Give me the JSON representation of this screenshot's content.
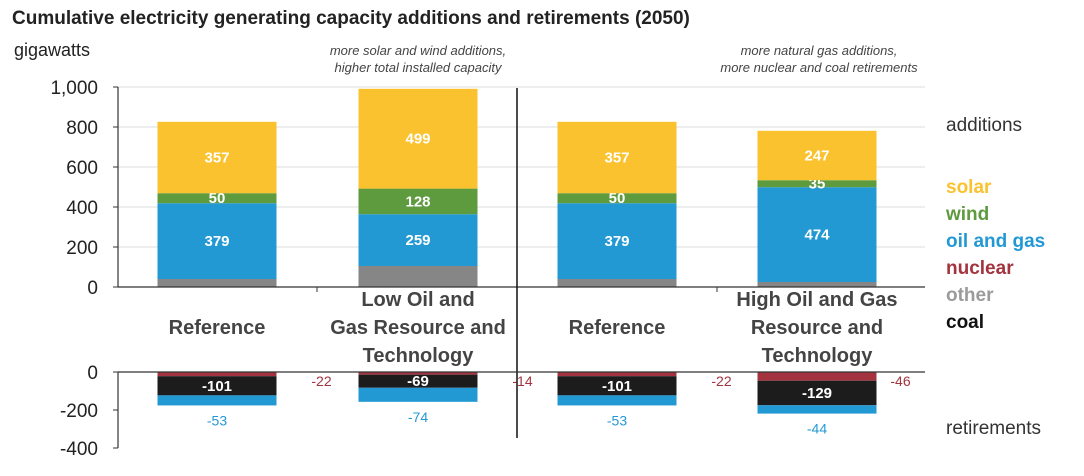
{
  "title": "Cumulative electricity generating capacity additions and retirements (2050)",
  "units": "gigawatts",
  "annotations": {
    "left": [
      "more solar and wind additions,",
      "higher total installed capacity"
    ],
    "right": [
      "more natural gas additions,",
      "more nuclear and coal retirements"
    ]
  },
  "legend": {
    "additions_label": "additions",
    "retirements_label": "retirements",
    "items": [
      {
        "name": "solar",
        "color": "#F9C22E"
      },
      {
        "name": "wind",
        "color": "#5E9A3E"
      },
      {
        "name": "oil and gas",
        "color": "#2399D4"
      },
      {
        "name": "nuclear",
        "color": "#A3343F"
      },
      {
        "name": "other",
        "color": "#9B9B9B"
      },
      {
        "name": "coal",
        "color": "#1C1C1C"
      }
    ]
  },
  "colors": {
    "solar": "#F9C22E",
    "wind": "#5E9A3E",
    "oil_and_gas": "#2399D4",
    "nuclear": "#A3343F",
    "other": "#868686",
    "coal": "#1C1C1C",
    "label_oil": "#2399D4",
    "label_nuclear": "#A3343F"
  },
  "chart_data": {
    "type": "bar",
    "stacked": true,
    "categories": [
      "Reference",
      "Low Oil and Gas Resource and Technology",
      "Reference",
      "High Oil and Gas Resource and Technology"
    ],
    "category_label_lines": [
      [
        "Reference"
      ],
      [
        "Low Oil and",
        "Gas Resource and",
        "Technology"
      ],
      [
        "Reference"
      ],
      [
        "High Oil and Gas",
        "Resource and",
        "Technology"
      ]
    ],
    "additions": {
      "ylim": [
        0,
        1000
      ],
      "yticks": [
        0,
        200,
        400,
        600,
        800,
        1000
      ],
      "ytick_labels": [
        "0",
        "200",
        "400",
        "600",
        "800",
        "1,000"
      ],
      "series": [
        {
          "name": "other",
          "values": [
            40,
            105,
            40,
            25
          ],
          "labels": [
            "",
            "",
            "",
            ""
          ]
        },
        {
          "name": "oil and gas",
          "values": [
            379,
            259,
            379,
            474
          ],
          "labels": [
            "379",
            "259",
            "379",
            "474"
          ]
        },
        {
          "name": "wind",
          "values": [
            50,
            128,
            50,
            35
          ],
          "labels": [
            "50",
            "128",
            "50",
            "35"
          ]
        },
        {
          "name": "solar",
          "values": [
            357,
            499,
            357,
            247
          ],
          "labels": [
            "357",
            "499",
            "357",
            "247"
          ]
        }
      ]
    },
    "retirements": {
      "ylim": [
        -400,
        0
      ],
      "yticks": [
        0,
        -200,
        -400
      ],
      "ytick_labels": [
        "0",
        "-200",
        "-400"
      ],
      "series": [
        {
          "name": "nuclear",
          "values": [
            -22,
            -14,
            -22,
            -46
          ],
          "labels": [
            "-22",
            "-14",
            "-22",
            "-46"
          ]
        },
        {
          "name": "coal",
          "values": [
            -101,
            -69,
            -101,
            -129
          ],
          "labels": [
            "-101",
            "-69",
            "-101",
            "-129"
          ]
        },
        {
          "name": "oil and gas",
          "values": [
            -53,
            -74,
            -53,
            -44
          ],
          "labels": [
            "-53",
            "-74",
            "-53",
            "-44"
          ]
        }
      ]
    }
  }
}
